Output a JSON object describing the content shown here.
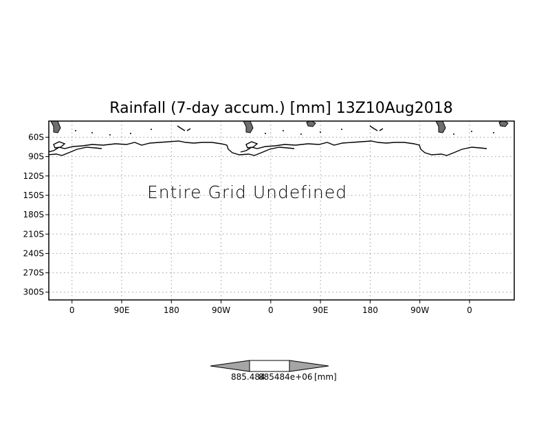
{
  "chart_data": {
    "type": "map",
    "title": "Rainfall (7-day accum.) [mm] 13Z10Aug2018",
    "message": "Entire Grid Undefined",
    "x_ticks": [
      {
        "lon": 0,
        "label": "0"
      },
      {
        "lon": 90,
        "label": "90E"
      },
      {
        "lon": 180,
        "label": "180"
      },
      {
        "lon": 270,
        "label": "90W"
      },
      {
        "lon": 360,
        "label": "0"
      },
      {
        "lon": 450,
        "label": "90E"
      },
      {
        "lon": 540,
        "label": "180"
      },
      {
        "lon": 630,
        "label": "90W"
      },
      {
        "lon": 720,
        "label": "0"
      }
    ],
    "y_ticks": [
      {
        "lat": -60,
        "label": "60S"
      },
      {
        "lat": -90,
        "label": "90S"
      },
      {
        "lat": -120,
        "label": "120S"
      },
      {
        "lat": -150,
        "label": "150S"
      },
      {
        "lat": -180,
        "label": "180S"
      },
      {
        "lat": -210,
        "label": "210S"
      },
      {
        "lat": -240,
        "label": "240S"
      },
      {
        "lat": -270,
        "label": "270S"
      },
      {
        "lat": -300,
        "label": "300S"
      }
    ],
    "xlim": [
      -42,
      801
    ],
    "ylim": [
      -312,
      -35
    ],
    "grid": true,
    "colorbar": {
      "labels": [
        "885.484",
        "885484e+06",
        "[mm]"
      ]
    }
  }
}
